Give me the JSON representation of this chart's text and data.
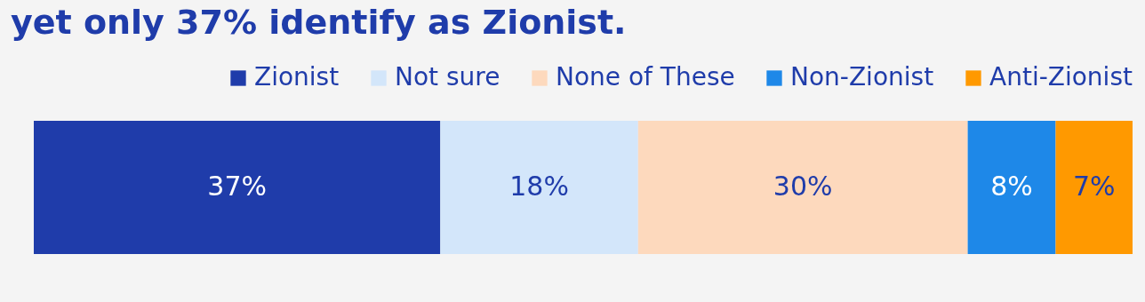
{
  "chart_data": {
    "type": "bar",
    "orientation": "horizontal",
    "stacked": true,
    "title": "yet only 37% identify as Zionist.",
    "categories": [
      null
    ],
    "legend": "top right",
    "series": [
      {
        "name": "Zionist",
        "color": "#1f3caa",
        "values": [
          37
        ],
        "value_labels": [
          "37%"
        ]
      },
      {
        "name": "Not sure",
        "color": "#d3e6fa",
        "values": [
          18
        ],
        "value_labels": [
          "18%"
        ]
      },
      {
        "name": "None of These",
        "color": "#fdd9bd",
        "values": [
          30
        ],
        "value_labels": [
          "30%"
        ]
      },
      {
        "name": "Non-Zionist",
        "color": "#1e88e8",
        "values": [
          8
        ],
        "value_labels": [
          "8%"
        ]
      },
      {
        "name": "Anti-Zionist",
        "color": "#ff9900",
        "values": [
          7
        ],
        "value_labels": [
          "7%"
        ]
      }
    ]
  }
}
